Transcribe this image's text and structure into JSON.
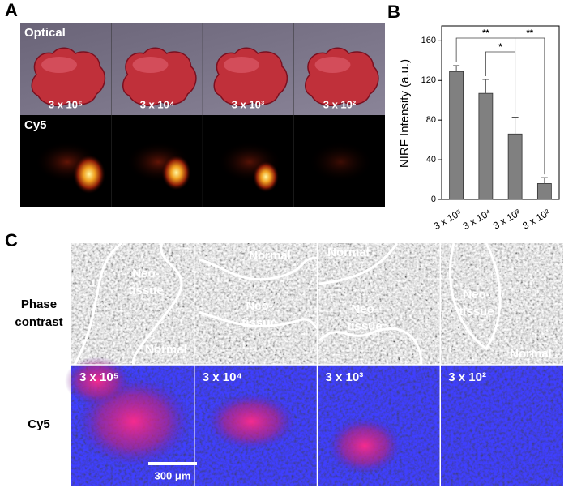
{
  "panel_labels": [
    "A",
    "B",
    "C"
  ],
  "panel_a": {
    "rows": [
      "Optical",
      "Cy5"
    ],
    "doses": [
      "3 x 10⁵",
      "3 x 10⁴",
      "3 x 10³",
      "3 x 10²"
    ]
  },
  "chart_data": {
    "type": "bar",
    "ylabel": "NIRF Intensity (a.u.)",
    "categories": [
      "3 x 10⁵",
      "3 x 10⁴",
      "3 x 10³",
      "3 x 10²"
    ],
    "values": [
      129,
      107,
      66,
      16
    ],
    "errors": [
      6,
      14,
      17,
      6
    ],
    "color": "#808080",
    "ylim": [
      0,
      175
    ],
    "yticks": [
      0,
      40,
      80,
      120,
      160
    ],
    "significance": [
      {
        "pair": [
          0,
          2
        ],
        "label": "**"
      },
      {
        "pair": [
          1,
          2
        ],
        "label": "*"
      },
      {
        "pair": [
          2,
          3
        ],
        "label": "**"
      }
    ]
  },
  "panel_c": {
    "rows": [
      [
        "Phase",
        "contrast"
      ],
      "Cy5"
    ],
    "doses": [
      "3 x 10⁵",
      "3 x 10⁴",
      "3 x 10³",
      "3 x 10²"
    ],
    "regions": [
      [
        [
          "Neo-",
          "tissue"
        ],
        "Normal"
      ],
      [
        "Normal",
        [
          "Neo-",
          "tissue"
        ]
      ],
      [
        "Normal",
        [
          "Neo-",
          "tissue"
        ]
      ],
      [
        [
          "Neo-",
          "tissue"
        ],
        "Normal"
      ]
    ],
    "scale_bar": "300 μm"
  }
}
